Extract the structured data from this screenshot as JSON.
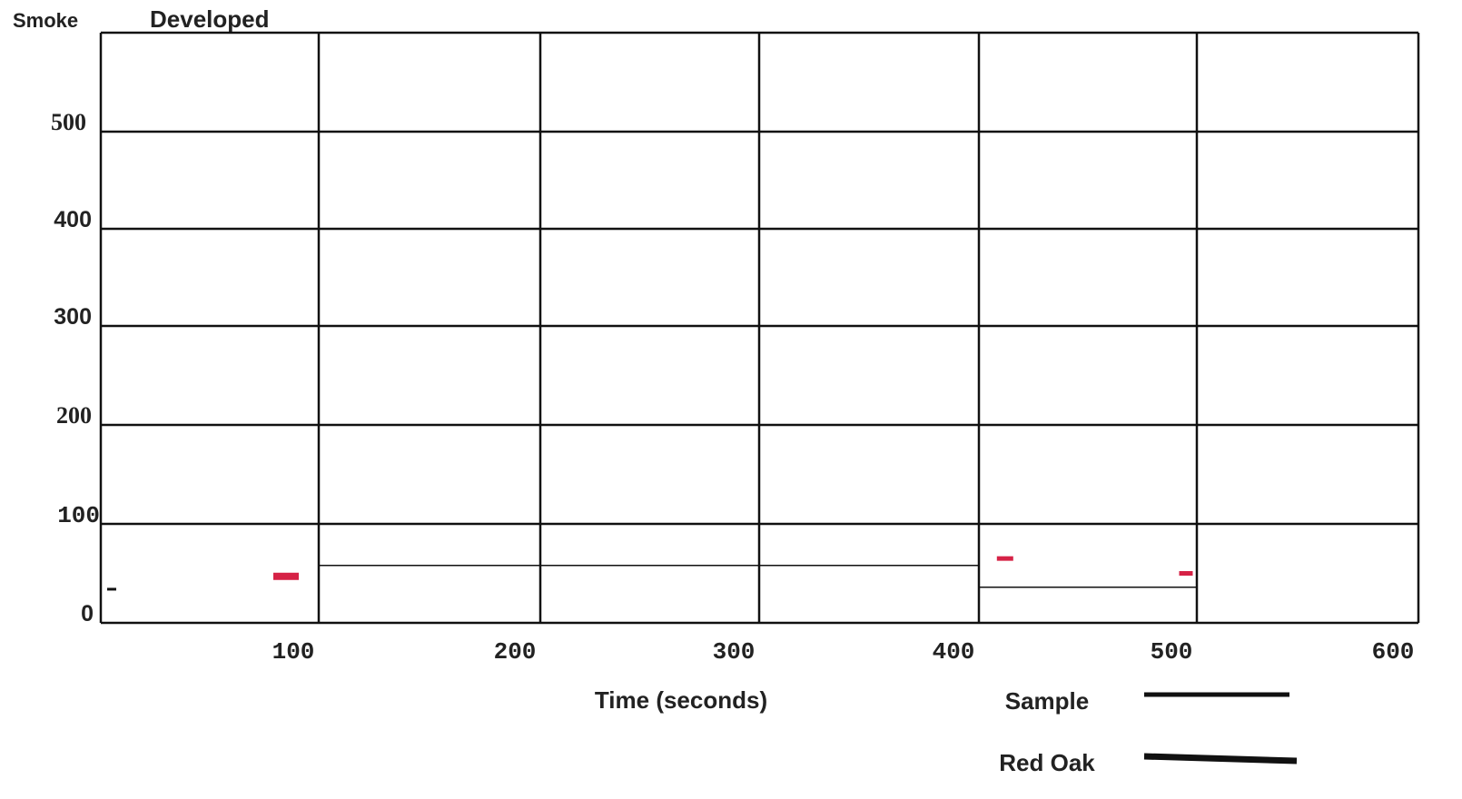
{
  "chart_data": {
    "type": "line",
    "title": "Developed",
    "ylabel": "Smoke",
    "xlabel": "Time (seconds)",
    "xlim": [
      0,
      600
    ],
    "ylim": [
      0,
      600
    ],
    "xticks": [
      "100",
      "200",
      "300",
      "400",
      "500",
      "600"
    ],
    "yticks": [
      "0",
      "100",
      "200",
      "300",
      "400",
      "500"
    ],
    "grid": true,
    "legend_position": "bottom-right",
    "series": [
      {
        "name": "Sample",
        "color": "#111111",
        "x": [
          100,
          400,
          400,
          500,
          500
        ],
        "y": [
          58,
          58,
          36,
          36,
          600
        ]
      },
      {
        "name": "Red Oak",
        "color": "#111111",
        "x": [],
        "y": []
      }
    ],
    "markers": [
      {
        "x": 5,
        "y": 34,
        "color": "#111111"
      },
      {
        "x": 85,
        "y": 47,
        "color": "#d62246"
      },
      {
        "x": 412,
        "y": 65,
        "color": "#d62246"
      },
      {
        "x": 495,
        "y": 50,
        "color": "#d62246"
      }
    ]
  }
}
